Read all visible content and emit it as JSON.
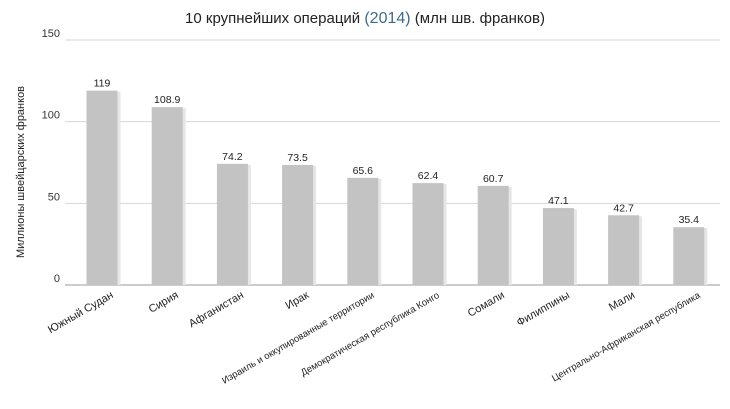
{
  "chart_data": {
    "type": "bar",
    "title_main": "10 крупнейших операций",
    "title_year": "(2014)",
    "title_units": "(млн шв. франков)",
    "ylabel": "Миллионы швейцарских франков",
    "xlabel": "",
    "ylim": [
      0,
      150
    ],
    "yticks": [
      0,
      50,
      100,
      150
    ],
    "grid": true,
    "legend": "none",
    "categories": [
      "Южный Судан",
      "Сирия",
      "Афганистан",
      "Ирак",
      "Израиль и оккупированные территории",
      "Демократическая республика Конго",
      "Сомали",
      "Филиппины",
      "Мали",
      "Центрально-Африканская республика"
    ],
    "values": [
      119,
      108.9,
      74.2,
      73.5,
      65.6,
      62.4,
      60.7,
      47.1,
      42.7,
      35.4
    ],
    "value_labels": [
      "119",
      "108.9",
      "74.2",
      "73.5",
      "65.6",
      "62.4",
      "60.7",
      "47.1",
      "42.7",
      "35.4"
    ],
    "colors": {
      "bar": "#c3c3c3",
      "bar_shadow": "#e6e6e6",
      "grid": "#d6d6d6",
      "axis": "#9a9a9a",
      "year": "#3f6a8a"
    }
  }
}
